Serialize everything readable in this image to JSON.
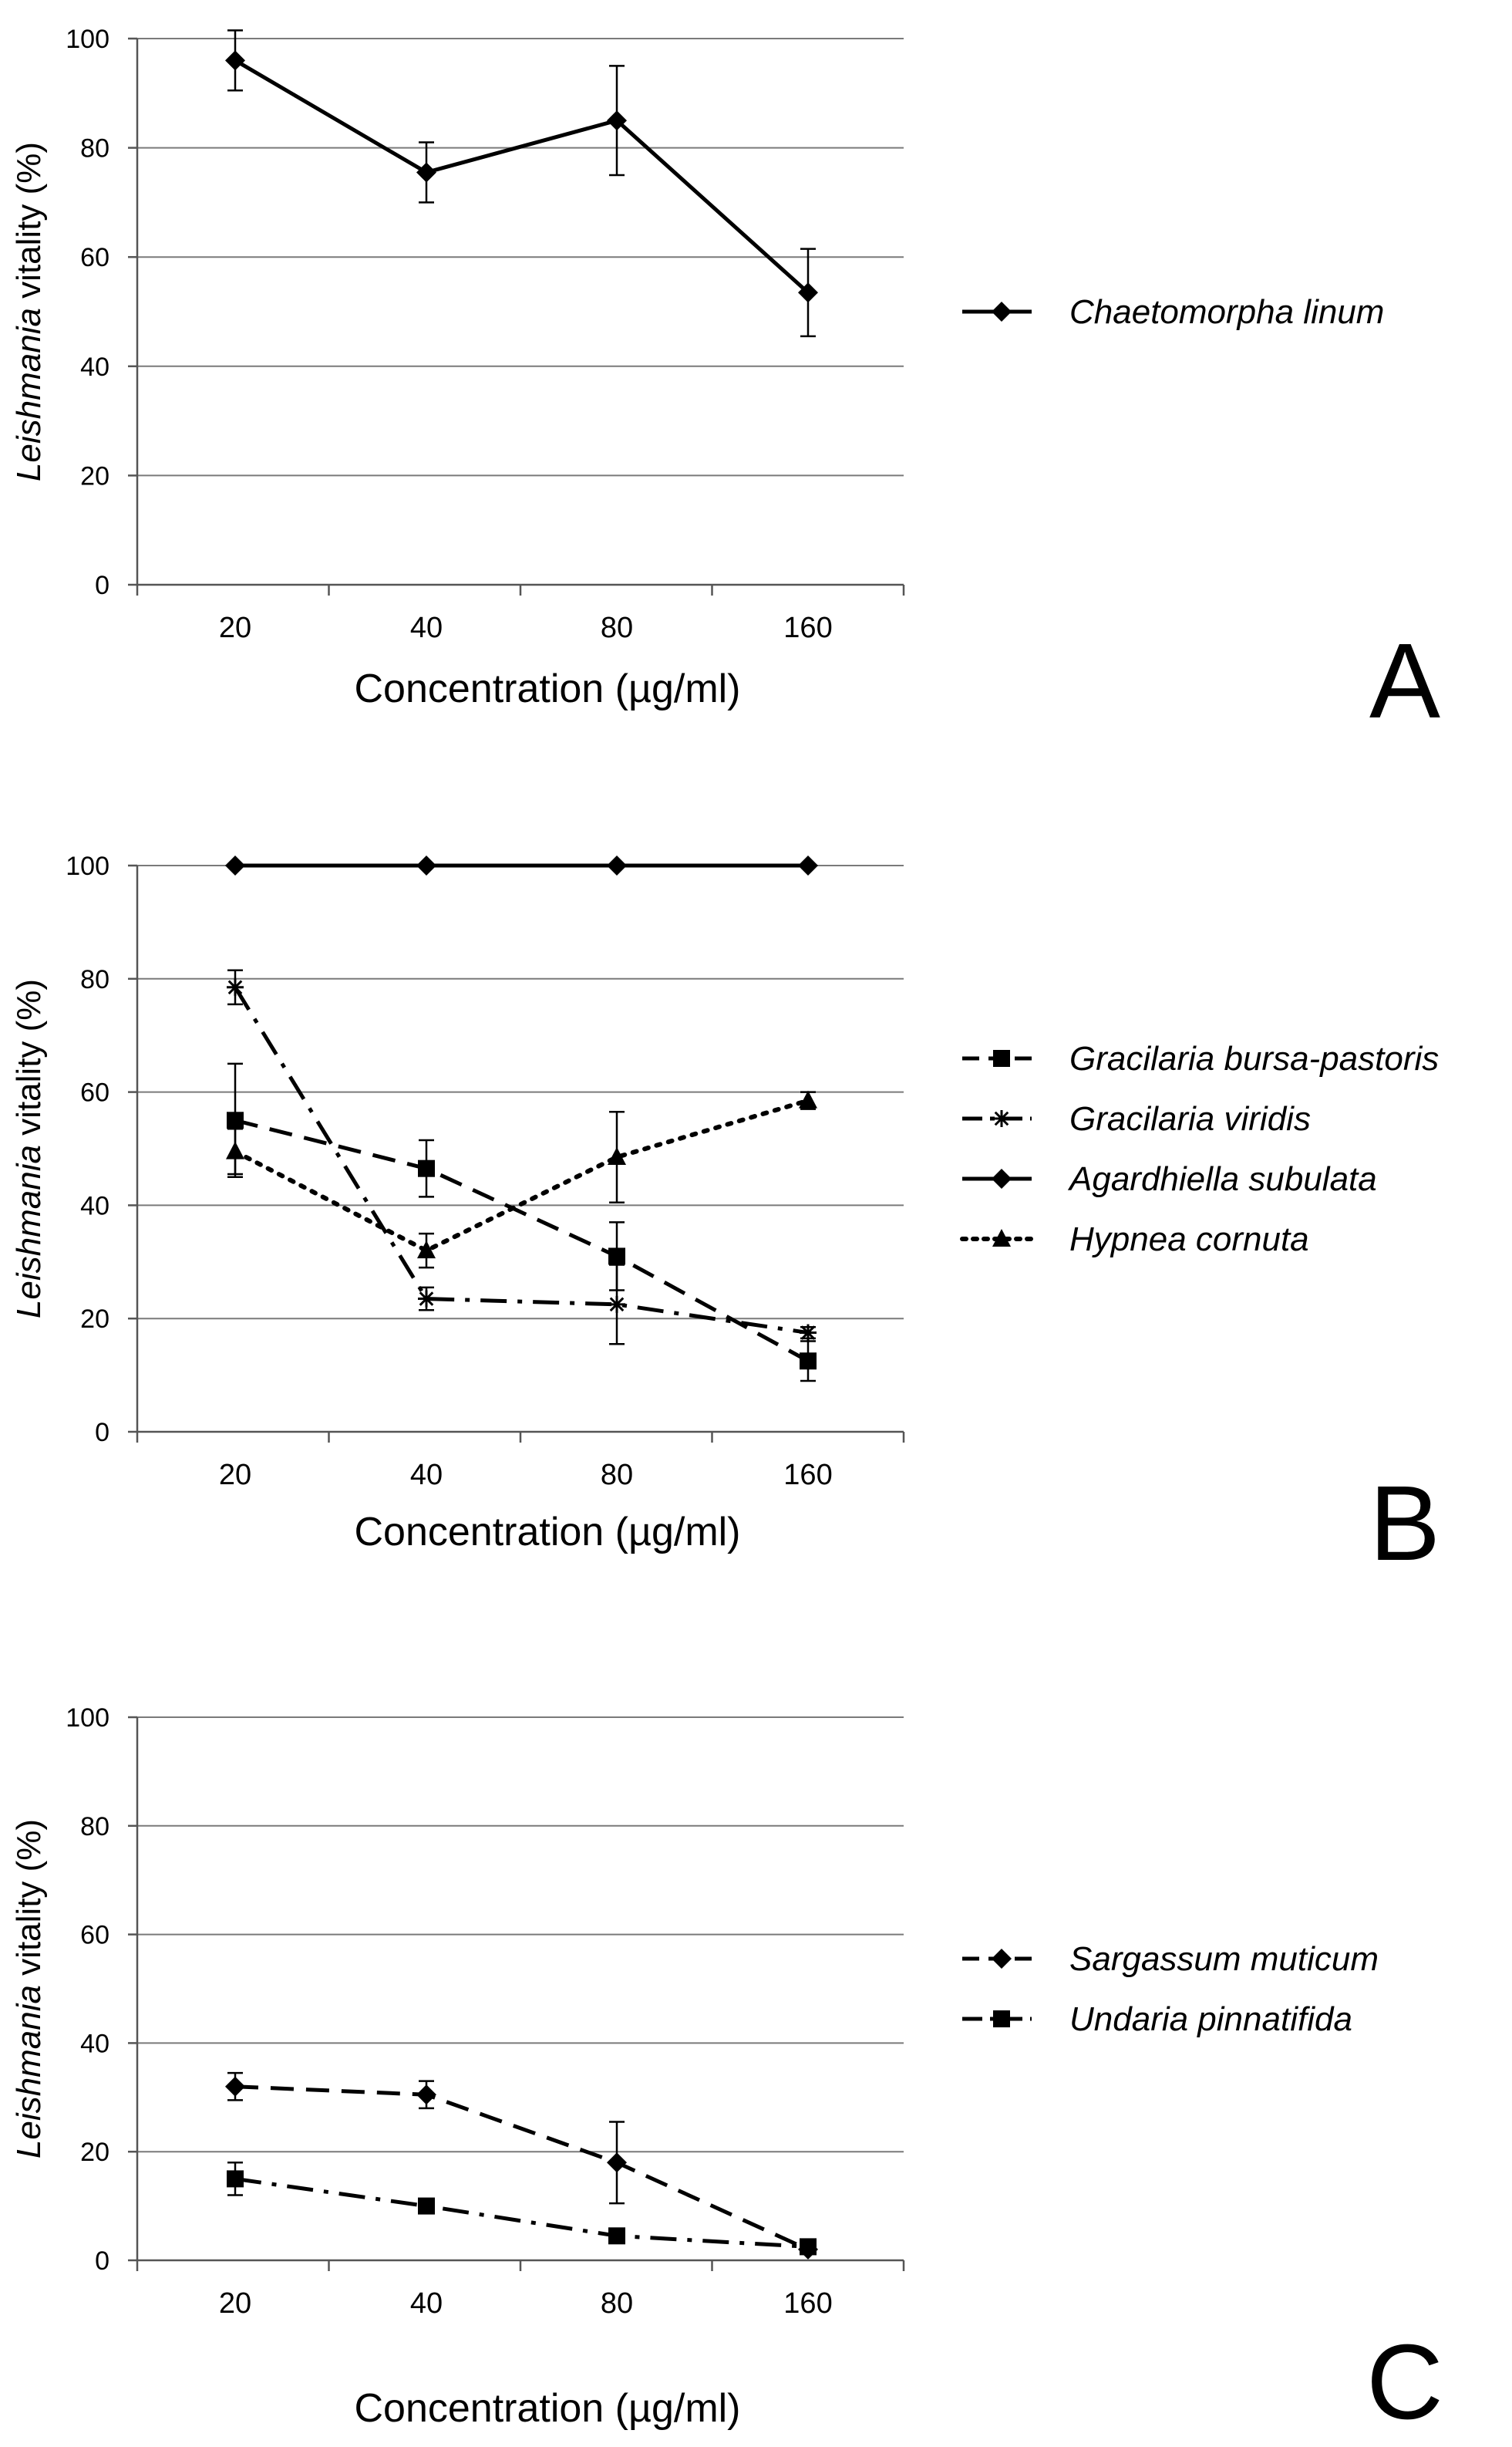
{
  "chart_data": [
    {
      "type": "line",
      "panel_label": "A",
      "xlabel": "Concentration (µg/ml)",
      "ylabel_italic": "Leishmania",
      "ylabel_rest": " vitality (%)",
      "categories": [
        "20",
        "40",
        "80",
        "160"
      ],
      "ylim": [
        0,
        100
      ],
      "yticks": [
        0,
        20,
        40,
        60,
        80,
        100
      ],
      "grid": true,
      "legend_position": "right",
      "series": [
        {
          "name": "Chaetomorpha linum",
          "style": "solid",
          "marker": "diamond",
          "values": [
            96,
            75.5,
            85,
            53.5
          ],
          "errors": [
            5.5,
            5.5,
            10,
            8
          ]
        }
      ]
    },
    {
      "type": "line",
      "panel_label": "B",
      "xlabel": "Concentration (µg/ml)",
      "ylabel_italic": "Leishmania",
      "ylabel_rest": " vitality (%)",
      "categories": [
        "20",
        "40",
        "80",
        "160"
      ],
      "ylim": [
        0,
        100
      ],
      "yticks": [
        0,
        20,
        40,
        60,
        80,
        100
      ],
      "grid": true,
      "legend_position": "right",
      "series": [
        {
          "name": "Gracilaria bursa-pastoris",
          "style": "dash",
          "marker": "square",
          "values": [
            55,
            46.5,
            31,
            12.5
          ],
          "errors": [
            10,
            5,
            6,
            3.5
          ]
        },
        {
          "name": "Gracilaria viridis",
          "style": "dashdot",
          "marker": "asterisk",
          "values": [
            78.5,
            23.5,
            22.5,
            17.5
          ],
          "errors": [
            3,
            2,
            7,
            1
          ]
        },
        {
          "name": "Agardhiella subulata",
          "style": "solid",
          "marker": "diamond",
          "values": [
            100,
            100,
            100,
            100
          ],
          "errors": [
            0,
            0,
            0,
            0
          ]
        },
        {
          "name": "Hypnea cornuta",
          "style": "dot",
          "marker": "triangle",
          "values": [
            49.5,
            32,
            48.5,
            58.5
          ],
          "errors": [
            4,
            3,
            8,
            1.5
          ]
        }
      ]
    },
    {
      "type": "line",
      "panel_label": "C",
      "xlabel": "Concentration (µg/ml)",
      "ylabel_italic": "Leishmania",
      "ylabel_rest": " vitality (%)",
      "categories": [
        "20",
        "40",
        "80",
        "160"
      ],
      "ylim": [
        0,
        100
      ],
      "yticks": [
        0,
        20,
        40,
        60,
        80,
        100
      ],
      "grid": true,
      "legend_position": "right",
      "series": [
        {
          "name": "Sargassum muticum",
          "style": "dash",
          "marker": "diamond",
          "values": [
            32,
            30.5,
            18,
            2
          ],
          "errors": [
            2.5,
            2.5,
            7.5,
            0.5
          ]
        },
        {
          "name": "Undaria pinnatifida",
          "style": "dashdot",
          "marker": "square",
          "values": [
            15,
            10,
            4.5,
            2.5
          ],
          "errors": [
            3,
            0.5,
            0.5,
            0.5
          ]
        }
      ]
    }
  ],
  "colors": {
    "line": "#000000",
    "grid": "#7a7a7a",
    "axis": "#555555",
    "background": "#ffffff"
  }
}
